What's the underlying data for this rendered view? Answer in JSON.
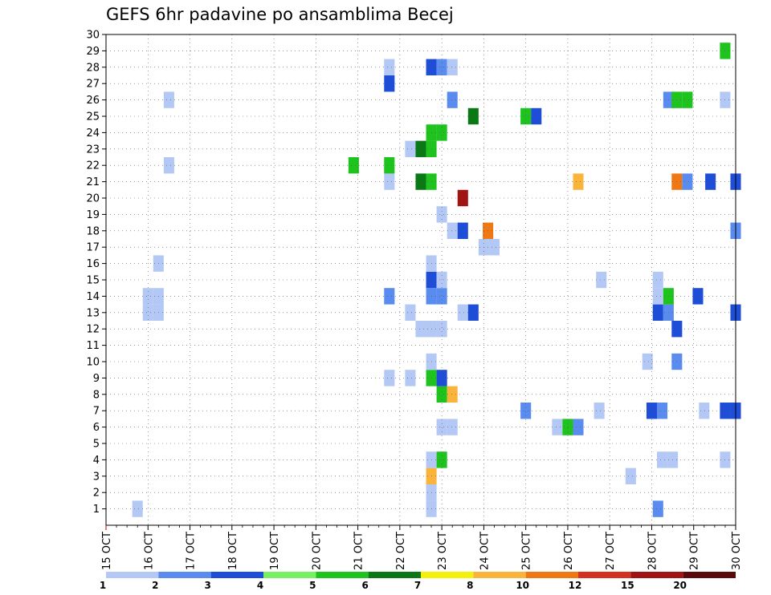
{
  "chart_data": {
    "type": "heatmap",
    "title": "GEFS 6hr padavine po ansamblima Becej",
    "y_ticks": [
      "1",
      "2",
      "3",
      "4",
      "5",
      "6",
      "7",
      "8",
      "9",
      "10",
      "11",
      "12",
      "13",
      "14",
      "15",
      "16",
      "17",
      "18",
      "19",
      "20",
      "21",
      "22",
      "23",
      "24",
      "25",
      "26",
      "27",
      "28",
      "29",
      "30"
    ],
    "x_ticks": [
      "15 OCT",
      "16 OCT",
      "17 OCT",
      "18 OCT",
      "19 OCT",
      "20 OCT",
      "21 OCT",
      "22 OCT",
      "23 OCT",
      "24 OCT",
      "25 OCT",
      "26 OCT",
      "27 OCT",
      "28 OCT",
      "29 OCT",
      "30 OCT"
    ],
    "x_range": [
      "15 OCT 00Z",
      "30 OCT 00Z"
    ],
    "y_range": [
      0,
      30
    ],
    "grid": true,
    "colorbar": {
      "levels": [
        "1",
        "2",
        "3",
        "4",
        "5",
        "6",
        "7",
        "8",
        "10",
        "12",
        "15",
        "20"
      ],
      "colors": [
        "#b4c8f5",
        "#5a8cf0",
        "#1e4ed8",
        "#78f064",
        "#1ec31e",
        "#0a7814",
        "#f5f00a",
        "#fab43c",
        "#f07814",
        "#d2321e",
        "#a01414",
        "#5a0a0a"
      ]
    },
    "cells_note": "each cell = [day (15 = 15 OCT 00Z), member, color class 0..11]",
    "cells": [
      [
        15.75,
        1,
        0
      ],
      [
        22.75,
        1,
        0
      ],
      [
        28.15,
        1,
        1
      ],
      [
        22.75,
        2,
        0
      ],
      [
        22.75,
        3,
        7
      ],
      [
        27.5,
        3,
        0
      ],
      [
        22.75,
        4,
        0
      ],
      [
        23.0,
        4,
        4
      ],
      [
        28.25,
        4,
        0
      ],
      [
        28.5,
        4,
        0
      ],
      [
        29.75,
        4,
        0
      ],
      [
        23.0,
        6,
        0
      ],
      [
        23.25,
        6,
        0
      ],
      [
        25.75,
        6,
        0
      ],
      [
        26.0,
        6,
        4
      ],
      [
        26.25,
        6,
        1
      ],
      [
        25.0,
        7,
        1
      ],
      [
        26.75,
        7,
        0
      ],
      [
        28.0,
        7,
        2
      ],
      [
        28.25,
        7,
        1
      ],
      [
        29.25,
        7,
        0
      ],
      [
        29.75,
        7,
        2
      ],
      [
        30.0,
        7,
        2
      ],
      [
        23.0,
        8,
        4
      ],
      [
        23.25,
        8,
        7
      ],
      [
        21.75,
        9,
        0
      ],
      [
        22.25,
        9,
        0
      ],
      [
        22.75,
        9,
        4
      ],
      [
        23.0,
        9,
        2
      ],
      [
        22.75,
        10,
        0
      ],
      [
        27.9,
        10,
        0
      ],
      [
        28.6,
        10,
        1
      ],
      [
        22.5,
        12,
        0
      ],
      [
        22.75,
        12,
        0
      ],
      [
        23.0,
        12,
        0
      ],
      [
        28.6,
        12,
        2
      ],
      [
        16.0,
        13,
        0
      ],
      [
        16.25,
        13,
        0
      ],
      [
        22.25,
        13,
        0
      ],
      [
        23.5,
        13,
        0
      ],
      [
        23.75,
        13,
        2
      ],
      [
        28.15,
        13,
        2
      ],
      [
        28.4,
        13,
        1
      ],
      [
        30.0,
        13,
        2
      ],
      [
        16.0,
        14,
        0
      ],
      [
        16.25,
        14,
        0
      ],
      [
        21.75,
        14,
        1
      ],
      [
        22.75,
        14,
        1
      ],
      [
        23.0,
        14,
        1
      ],
      [
        28.15,
        14,
        0
      ],
      [
        28.4,
        14,
        4
      ],
      [
        29.1,
        14,
        2
      ],
      [
        22.75,
        15,
        2
      ],
      [
        23.0,
        15,
        0
      ],
      [
        26.8,
        15,
        0
      ],
      [
        28.15,
        15,
        0
      ],
      [
        16.25,
        16,
        0
      ],
      [
        22.75,
        16,
        0
      ],
      [
        24.0,
        17,
        0
      ],
      [
        24.25,
        17,
        0
      ],
      [
        23.25,
        18,
        0
      ],
      [
        23.5,
        18,
        2
      ],
      [
        24.1,
        18,
        8
      ],
      [
        30.0,
        18,
        1
      ],
      [
        23.0,
        19,
        0
      ],
      [
        23.5,
        20,
        10
      ],
      [
        21.75,
        21,
        0
      ],
      [
        22.5,
        21,
        5
      ],
      [
        22.75,
        21,
        4
      ],
      [
        26.25,
        21,
        7
      ],
      [
        28.6,
        21,
        8
      ],
      [
        28.85,
        21,
        1
      ],
      [
        29.4,
        21,
        2
      ],
      [
        30.0,
        21,
        2
      ],
      [
        16.5,
        22,
        0
      ],
      [
        20.9,
        22,
        4
      ],
      [
        21.75,
        22,
        4
      ],
      [
        22.25,
        23,
        0
      ],
      [
        22.5,
        23,
        5
      ],
      [
        22.75,
        23,
        4
      ],
      [
        22.75,
        24,
        4
      ],
      [
        23.0,
        24,
        4
      ],
      [
        23.75,
        25,
        5
      ],
      [
        25.0,
        25,
        4
      ],
      [
        25.25,
        25,
        2
      ],
      [
        16.5,
        26,
        0
      ],
      [
        23.25,
        26,
        1
      ],
      [
        28.4,
        26,
        1
      ],
      [
        28.6,
        26,
        4
      ],
      [
        28.85,
        26,
        4
      ],
      [
        29.75,
        26,
        0
      ],
      [
        21.75,
        27,
        2
      ],
      [
        21.75,
        28,
        0
      ],
      [
        22.75,
        28,
        2
      ],
      [
        23.0,
        28,
        1
      ],
      [
        23.25,
        28,
        0
      ],
      [
        29.75,
        29,
        4
      ]
    ]
  }
}
